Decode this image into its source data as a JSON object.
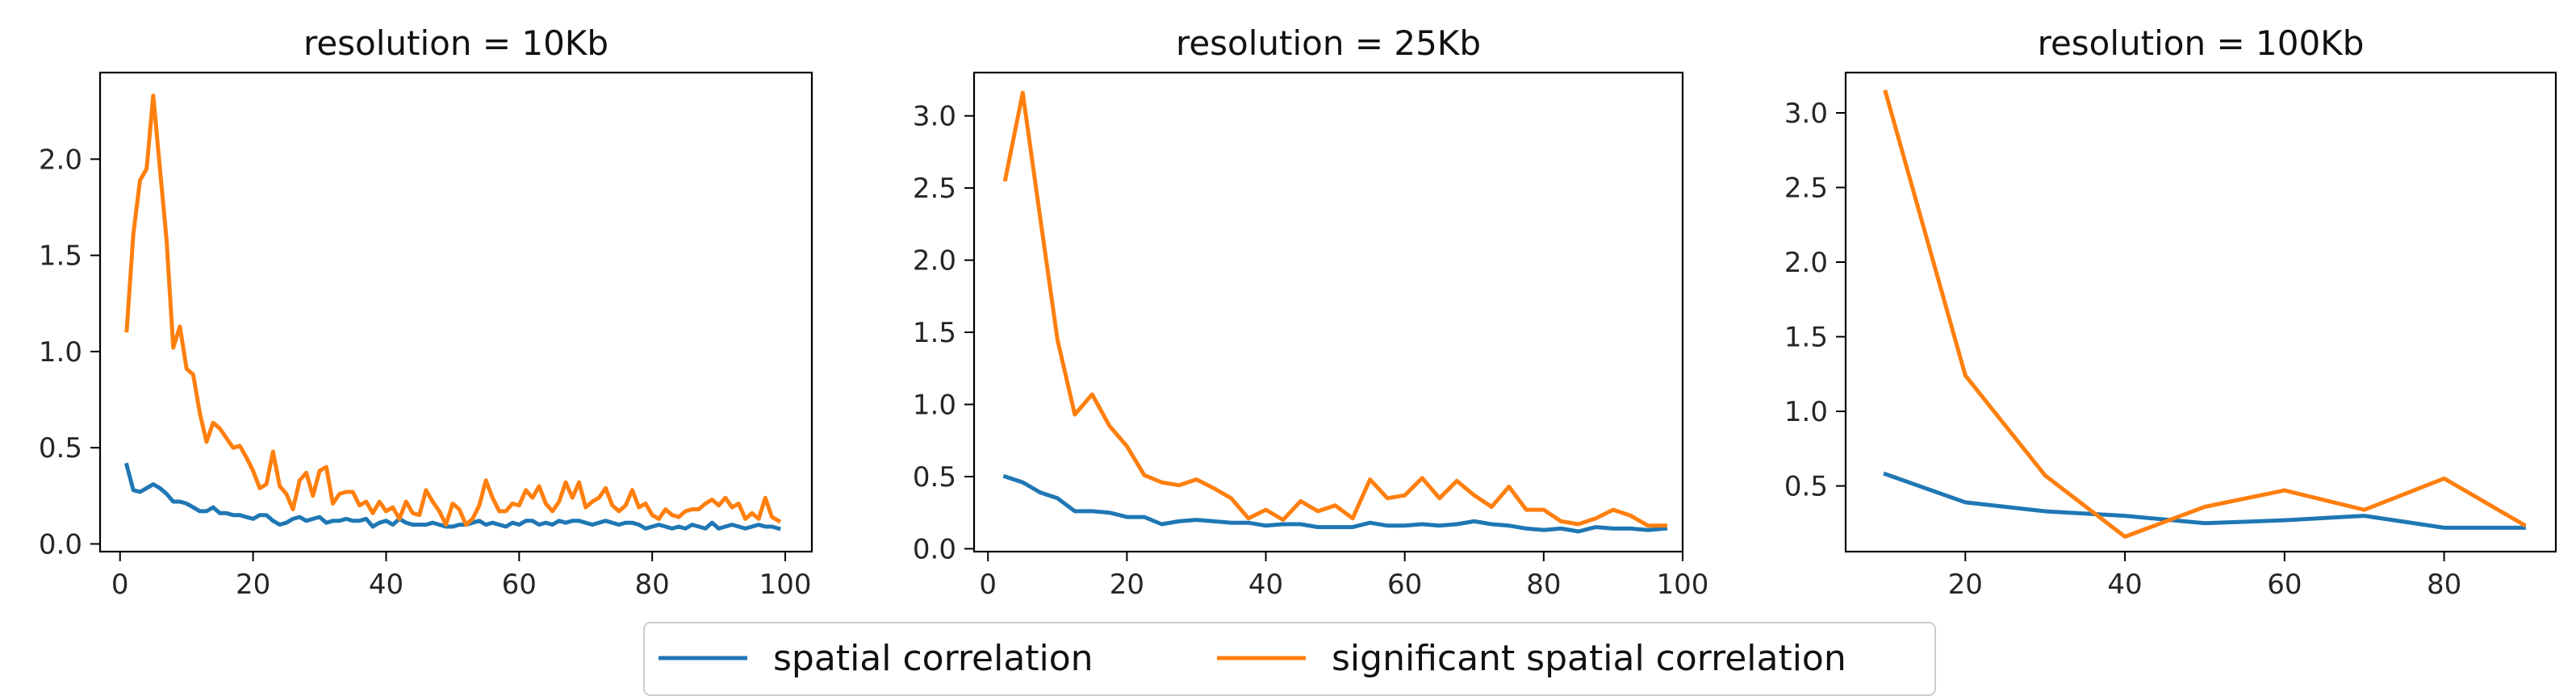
{
  "chart_data": [
    {
      "type": "line",
      "title": "resolution = 10Kb",
      "xlabel": "",
      "ylabel": "",
      "xlim": [
        -3,
        104
      ],
      "ylim": [
        -0.04,
        2.45
      ],
      "xticks": [
        0,
        20,
        40,
        60,
        80,
        100
      ],
      "yticks": [
        0.0,
        0.5,
        1.0,
        1.5,
        2.0
      ],
      "grid": false,
      "series": [
        {
          "name": "spatial correlation",
          "color": "#1f77b4",
          "x": [
            1,
            2,
            3,
            4,
            5,
            6,
            7,
            8,
            9,
            10,
            11,
            12,
            13,
            14,
            15,
            16,
            17,
            18,
            19,
            20,
            21,
            22,
            23,
            24,
            25,
            26,
            27,
            28,
            29,
            30,
            31,
            32,
            33,
            34,
            35,
            36,
            37,
            38,
            39,
            40,
            41,
            42,
            43,
            44,
            45,
            46,
            47,
            48,
            49,
            50,
            51,
            52,
            53,
            54,
            55,
            56,
            57,
            58,
            59,
            60,
            61,
            62,
            63,
            64,
            65,
            66,
            67,
            68,
            69,
            70,
            71,
            72,
            73,
            74,
            75,
            76,
            77,
            78,
            79,
            80,
            81,
            82,
            83,
            84,
            85,
            86,
            87,
            88,
            89,
            90,
            91,
            92,
            93,
            94,
            95,
            96,
            97,
            98,
            99
          ],
          "y": [
            0.41,
            0.28,
            0.27,
            0.29,
            0.31,
            0.29,
            0.26,
            0.22,
            0.22,
            0.21,
            0.19,
            0.17,
            0.17,
            0.19,
            0.16,
            0.16,
            0.15,
            0.15,
            0.14,
            0.13,
            0.15,
            0.15,
            0.12,
            0.1,
            0.11,
            0.13,
            0.14,
            0.12,
            0.13,
            0.14,
            0.11,
            0.12,
            0.12,
            0.13,
            0.12,
            0.12,
            0.13,
            0.09,
            0.11,
            0.12,
            0.1,
            0.13,
            0.11,
            0.1,
            0.1,
            0.1,
            0.11,
            0.1,
            0.09,
            0.09,
            0.1,
            0.1,
            0.11,
            0.12,
            0.1,
            0.11,
            0.1,
            0.09,
            0.11,
            0.1,
            0.12,
            0.12,
            0.1,
            0.11,
            0.1,
            0.12,
            0.11,
            0.12,
            0.12,
            0.11,
            0.1,
            0.11,
            0.12,
            0.11,
            0.1,
            0.11,
            0.11,
            0.1,
            0.08,
            0.09,
            0.1,
            0.09,
            0.08,
            0.09,
            0.08,
            0.1,
            0.09,
            0.08,
            0.11,
            0.08,
            0.09,
            0.1,
            0.09,
            0.08,
            0.09,
            0.1,
            0.09,
            0.09,
            0.08
          ]
        },
        {
          "name": "significant spatial correlation",
          "color": "#ff7f0e",
          "x": [
            1,
            2,
            3,
            4,
            5,
            6,
            7,
            8,
            9,
            10,
            11,
            12,
            13,
            14,
            15,
            16,
            17,
            18,
            19,
            20,
            21,
            22,
            23,
            24,
            25,
            26,
            27,
            28,
            29,
            30,
            31,
            32,
            33,
            34,
            35,
            36,
            37,
            38,
            39,
            40,
            41,
            42,
            43,
            44,
            45,
            46,
            47,
            48,
            49,
            50,
            51,
            52,
            53,
            54,
            55,
            56,
            57,
            58,
            59,
            60,
            61,
            62,
            63,
            64,
            65,
            66,
            67,
            68,
            69,
            70,
            71,
            72,
            73,
            74,
            75,
            76,
            77,
            78,
            79,
            80,
            81,
            82,
            83,
            84,
            85,
            86,
            87,
            88,
            89,
            90,
            91,
            92,
            93,
            94,
            95,
            96,
            97,
            98,
            99
          ],
          "y": [
            1.11,
            1.61,
            1.89,
            1.95,
            2.33,
            1.95,
            1.58,
            1.02,
            1.13,
            0.91,
            0.88,
            0.68,
            0.53,
            0.63,
            0.6,
            0.55,
            0.5,
            0.51,
            0.45,
            0.38,
            0.29,
            0.31,
            0.48,
            0.3,
            0.26,
            0.18,
            0.33,
            0.37,
            0.25,
            0.38,
            0.4,
            0.21,
            0.26,
            0.27,
            0.27,
            0.2,
            0.22,
            0.16,
            0.22,
            0.17,
            0.19,
            0.13,
            0.22,
            0.16,
            0.15,
            0.28,
            0.22,
            0.17,
            0.1,
            0.21,
            0.18,
            0.1,
            0.13,
            0.2,
            0.33,
            0.24,
            0.17,
            0.17,
            0.21,
            0.2,
            0.28,
            0.24,
            0.3,
            0.21,
            0.17,
            0.22,
            0.32,
            0.24,
            0.32,
            0.19,
            0.22,
            0.24,
            0.29,
            0.2,
            0.17,
            0.2,
            0.28,
            0.19,
            0.21,
            0.15,
            0.13,
            0.18,
            0.15,
            0.14,
            0.17,
            0.18,
            0.18,
            0.21,
            0.23,
            0.2,
            0.24,
            0.19,
            0.21,
            0.13,
            0.16,
            0.13,
            0.24,
            0.14,
            0.12
          ]
        }
      ]
    },
    {
      "type": "line",
      "title": "resolution = 25Kb",
      "xlabel": "",
      "ylabel": "",
      "xlim": [
        -2,
        100
      ],
      "ylim": [
        -0.02,
        3.3
      ],
      "xticks": [
        0,
        20,
        40,
        60,
        80,
        100
      ],
      "yticks": [
        0.0,
        0.5,
        1.0,
        1.5,
        2.0,
        2.5,
        3.0
      ],
      "grid": false,
      "series": [
        {
          "name": "spatial correlation",
          "color": "#1f77b4",
          "x": [
            2.5,
            5,
            7.5,
            10,
            12.5,
            15,
            17.5,
            20,
            22.5,
            25,
            27.5,
            30,
            32.5,
            35,
            37.5,
            40,
            42.5,
            45,
            47.5,
            50,
            52.5,
            55,
            57.5,
            60,
            62.5,
            65,
            67.5,
            70,
            72.5,
            75,
            77.5,
            80,
            82.5,
            85,
            87.5,
            90,
            92.5,
            95,
            97.5
          ],
          "y": [
            0.5,
            0.46,
            0.39,
            0.35,
            0.26,
            0.26,
            0.25,
            0.22,
            0.22,
            0.17,
            0.19,
            0.2,
            0.19,
            0.18,
            0.18,
            0.16,
            0.17,
            0.17,
            0.15,
            0.15,
            0.15,
            0.18,
            0.16,
            0.16,
            0.17,
            0.16,
            0.17,
            0.19,
            0.17,
            0.16,
            0.14,
            0.13,
            0.14,
            0.12,
            0.15,
            0.14,
            0.14,
            0.13,
            0.14
          ]
        },
        {
          "name": "significant spatial correlation",
          "color": "#ff7f0e",
          "x": [
            2.5,
            5,
            7.5,
            10,
            12.5,
            15,
            17.5,
            20,
            22.5,
            25,
            27.5,
            30,
            32.5,
            35,
            37.5,
            40,
            42.5,
            45,
            47.5,
            50,
            52.5,
            55,
            57.5,
            60,
            62.5,
            65,
            67.5,
            70,
            72.5,
            75,
            77.5,
            80,
            82.5,
            85,
            87.5,
            90,
            92.5,
            95,
            97.5
          ],
          "y": [
            2.56,
            3.16,
            2.3,
            1.45,
            0.93,
            1.07,
            0.85,
            0.71,
            0.51,
            0.46,
            0.44,
            0.48,
            0.42,
            0.35,
            0.21,
            0.27,
            0.2,
            0.33,
            0.26,
            0.3,
            0.21,
            0.48,
            0.35,
            0.37,
            0.49,
            0.35,
            0.47,
            0.37,
            0.29,
            0.43,
            0.27,
            0.27,
            0.19,
            0.17,
            0.21,
            0.27,
            0.23,
            0.16,
            0.16
          ]
        }
      ]
    },
    {
      "type": "line",
      "title": "resolution = 100Kb",
      "xlabel": "",
      "ylabel": "",
      "xlim": [
        5,
        94
      ],
      "ylim": [
        0.06,
        3.27
      ],
      "xticks": [
        20,
        40,
        60,
        80
      ],
      "yticks": [
        0.5,
        1.0,
        1.5,
        2.0,
        2.5,
        3.0
      ],
      "grid": false,
      "series": [
        {
          "name": "spatial correlation",
          "color": "#1f77b4",
          "x": [
            10,
            20,
            30,
            40,
            50,
            60,
            70,
            80,
            90
          ],
          "y": [
            0.58,
            0.39,
            0.33,
            0.3,
            0.25,
            0.27,
            0.3,
            0.22,
            0.22
          ]
        },
        {
          "name": "significant spatial correlation",
          "color": "#ff7f0e",
          "x": [
            10,
            20,
            30,
            40,
            50,
            60,
            70,
            80,
            90
          ],
          "y": [
            3.14,
            1.24,
            0.57,
            0.16,
            0.36,
            0.47,
            0.34,
            0.55,
            0.24
          ]
        }
      ]
    }
  ],
  "legend": {
    "placement": "bottom-center",
    "entries": [
      {
        "label": "spatial correlation",
        "color": "#1f77b4"
      },
      {
        "label": "significant spatial correlation",
        "color": "#ff7f0e"
      }
    ]
  }
}
